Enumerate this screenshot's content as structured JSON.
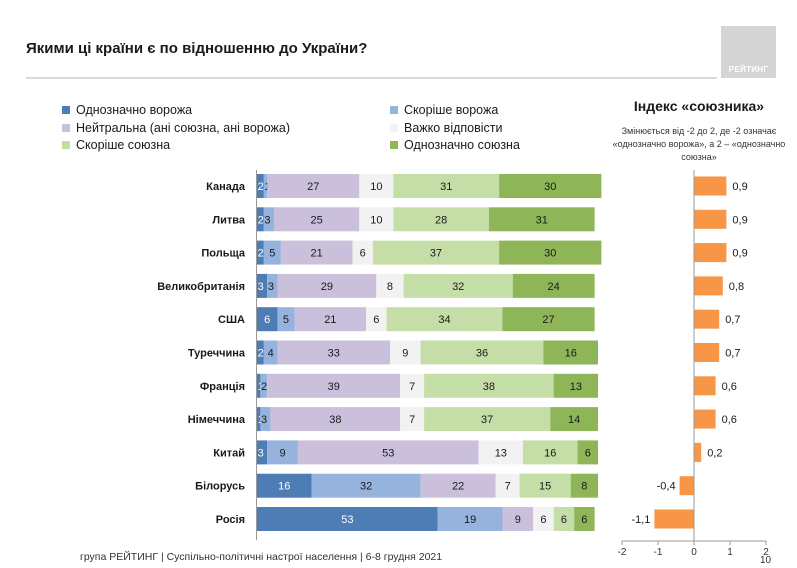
{
  "title": "Якими ці країни є по відношенню до України?",
  "logo_text": "РЕЙТИНГ",
  "footer": "група РЕЙТИНГ | Суспільно-політичні настрої населення  | 6-8 грудня 2021",
  "page_number": "10",
  "index_panel": {
    "title": "Індекс «союзника»",
    "subtitle": "Змінюється від -2 до 2, де -2 означає «однозначно ворожа», а 2 – «однозначно союзна»"
  },
  "legend": [
    {
      "label": "Однозначно ворожа",
      "color": "#4e7cb5"
    },
    {
      "label": "Скоріше ворожа",
      "color": "#95b3dd"
    },
    {
      "label": "Нейтральна (ані союзна, ані ворожа)",
      "color": "#cbc0dc"
    },
    {
      "label": "Важко відповісти",
      "color": "#f2f2f2"
    },
    {
      "label": "Скоріше союзна",
      "color": "#c5dea7"
    },
    {
      "label": "Однозначно союзна",
      "color": "#8eb658"
    }
  ],
  "chart_data": [
    {
      "type": "bar",
      "orientation": "horizontal",
      "stacked": true,
      "normalized_to": 100,
      "categories": [
        "Канада",
        "Литва",
        "Польща",
        "Великобританія",
        "США",
        "Туреччина",
        "Франція",
        "Німеччина",
        "Китай",
        "Білорусь",
        "Росія"
      ],
      "series": [
        {
          "name": "Однозначно ворожа",
          "color": "#4e7cb5",
          "values": [
            2,
            2,
            2,
            3,
            6,
            2,
            1,
            1,
            3,
            16,
            53
          ]
        },
        {
          "name": "Скоріше ворожа",
          "color": "#95b3dd",
          "values": [
            1,
            3,
            5,
            3,
            5,
            4,
            2,
            3,
            9,
            32,
            19
          ]
        },
        {
          "name": "Нейтральна (ані союзна, ані ворожа)",
          "color": "#cbc0dc",
          "values": [
            27,
            25,
            21,
            29,
            21,
            33,
            39,
            38,
            53,
            22,
            9
          ]
        },
        {
          "name": "Важко відповісти",
          "color": "#f2f2f2",
          "values": [
            10,
            10,
            6,
            8,
            6,
            9,
            7,
            7,
            13,
            7,
            6
          ]
        },
        {
          "name": "Скоріше союзна",
          "color": "#c5dea7",
          "values": [
            31,
            28,
            37,
            32,
            34,
            36,
            38,
            37,
            16,
            15,
            6
          ]
        },
        {
          "name": "Однозначно союзна",
          "color": "#8eb658",
          "values": [
            30,
            31,
            30,
            24,
            27,
            16,
            13,
            14,
            6,
            8,
            6
          ]
        }
      ],
      "legend_position": "top"
    },
    {
      "type": "bar",
      "orientation": "horizontal",
      "title": "Індекс «союзника»",
      "categories": [
        "Канада",
        "Литва",
        "Польща",
        "Великобританія",
        "США",
        "Туреччина",
        "Франція",
        "Німеччина",
        "Китай",
        "Білорусь",
        "Росія"
      ],
      "values": [
        0.9,
        0.9,
        0.9,
        0.8,
        0.7,
        0.7,
        0.6,
        0.6,
        0.2,
        -0.4,
        -1.1
      ],
      "value_labels": [
        "0,9",
        "0,9",
        "0,9",
        "0,8",
        "0,7",
        "0,7",
        "0,6",
        "0,6",
        "0,2",
        "-0,4",
        "-1,1"
      ],
      "xlim": [
        -2,
        2
      ],
      "x_ticks": [
        -2,
        -1,
        0,
        1,
        2
      ],
      "x_tick_labels": [
        "-2",
        "-1",
        "0",
        "1",
        "2"
      ],
      "color": "#f79646"
    }
  ]
}
